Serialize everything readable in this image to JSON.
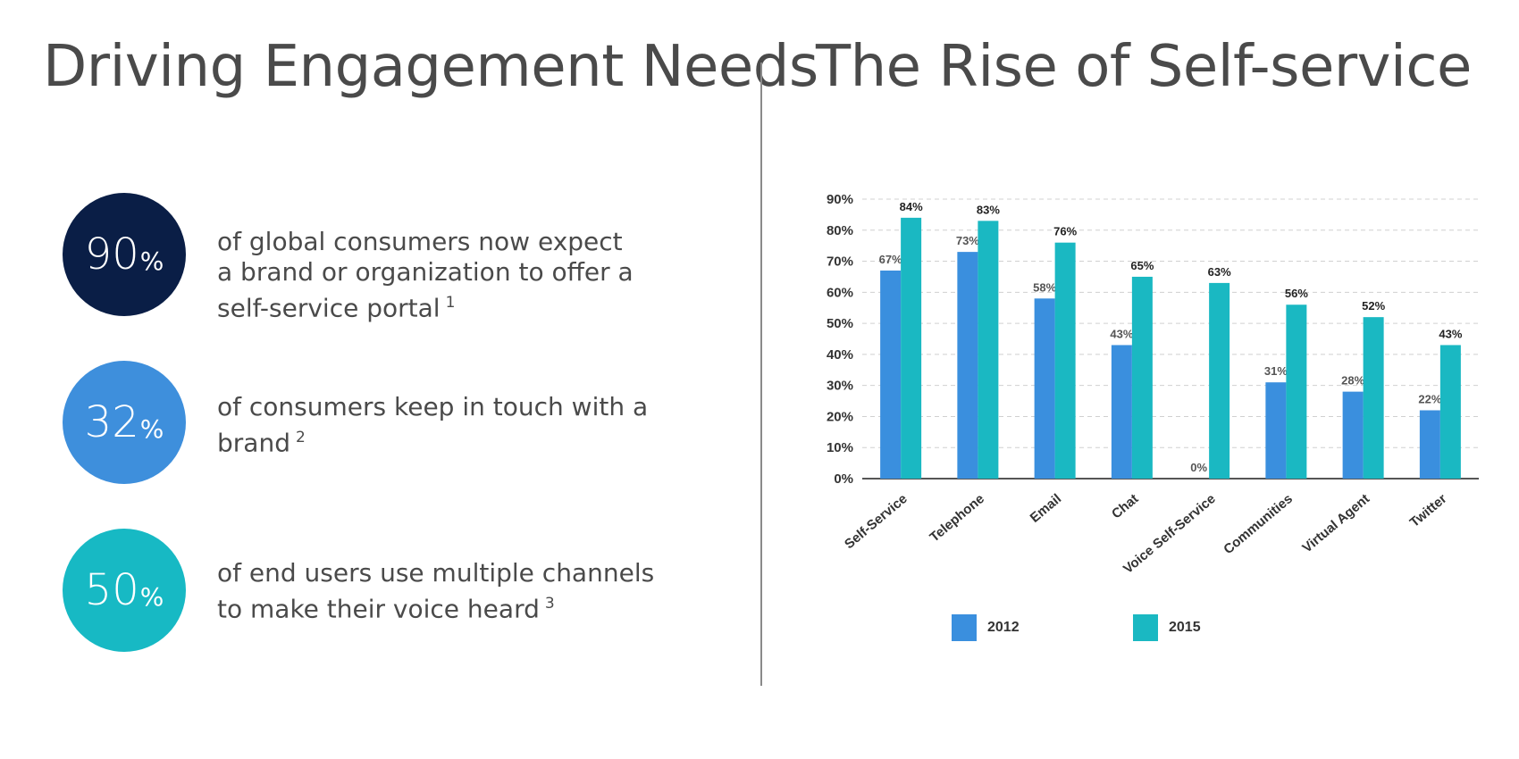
{
  "left_title": "Driving Engagement Needs",
  "right_title": "The Rise of Self-service",
  "stats": [
    {
      "number": "90",
      "unit": "%",
      "line1": "of global consumers now expect",
      "line2": "a brand or organization to offer a",
      "line3": "self-service portal",
      "footnote": "1",
      "color": "#0a1e46"
    },
    {
      "number": "32",
      "unit": "%",
      "line1": "of consumers keep in touch with a",
      "line2": "brand",
      "footnote": "2",
      "color": "#3e8fdc"
    },
    {
      "number": "50",
      "unit": "%",
      "line1": "of end users use multiple channels",
      "line2": "to make their voice heard",
      "footnote": "3",
      "color": "#17b9c4"
    }
  ],
  "chart_data": {
    "type": "bar",
    "categories": [
      "Self-Service",
      "Telephone",
      "Email",
      "Chat",
      "Voice Self-Service",
      "Communities",
      "Virtual Agent",
      "Twitter"
    ],
    "series": [
      {
        "name": "2012",
        "values": [
          67,
          73,
          58,
          43,
          0,
          31,
          28,
          22
        ],
        "labels": [
          "67%",
          "73%",
          "58%",
          "43%",
          "0%",
          "31%",
          "28%",
          "22%"
        ],
        "color": "#3a8fde"
      },
      {
        "name": "2015",
        "values": [
          84,
          83,
          76,
          65,
          63,
          56,
          52,
          43
        ],
        "labels": [
          "84%",
          "83%",
          "76%",
          "65%",
          "63%",
          "56%",
          "52%",
          "43%"
        ],
        "color": "#1ab8c2"
      }
    ],
    "ylim": [
      0,
      90
    ],
    "yticks": [
      "0%",
      "10%",
      "20%",
      "30%",
      "40%",
      "50%",
      "60%",
      "70%",
      "80%",
      "90%"
    ],
    "grid": true,
    "legend": "bottom"
  }
}
